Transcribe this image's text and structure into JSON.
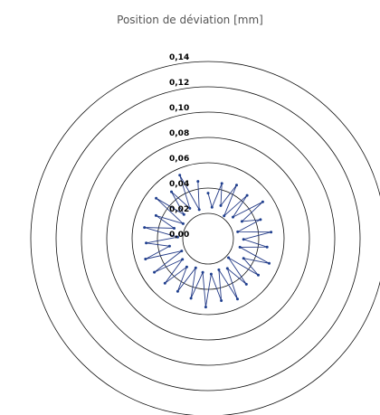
{
  "chart_data": {
    "type": "scatter",
    "subtype": "polar-deviation",
    "title": "Position de déviation [mm]",
    "units": "mm",
    "r_max": 0.14,
    "grid": true,
    "ring_labels": [
      "0,14",
      "0,12",
      "0,10",
      "0,08",
      "0,06",
      "0,04",
      "0,02",
      "0,00"
    ],
    "ring_values": [
      0.14,
      0.12,
      0.1,
      0.08,
      0.06,
      0.04,
      0.02,
      0.0
    ],
    "series": [
      {
        "marker_color": "#1f3f8f",
        "line_color": "#233a86",
        "connected": true,
        "points_angle_deg_radius": [
          [
            90,
            0.036
          ],
          [
            83,
            0.025
          ],
          [
            76,
            0.045
          ],
          [
            69,
            0.028
          ],
          [
            62,
            0.048
          ],
          [
            55,
            0.022
          ],
          [
            48,
            0.046
          ],
          [
            41,
            0.026
          ],
          [
            34,
            0.052
          ],
          [
            27,
            0.03
          ],
          [
            20,
            0.044
          ],
          [
            13,
            0.024
          ],
          [
            6,
            0.05
          ],
          [
            -1,
            0.028
          ],
          [
            -8,
            0.047
          ],
          [
            -15,
            0.026
          ],
          [
            -22,
            0.052
          ],
          [
            -29,
            0.032
          ],
          [
            -36,
            0.049
          ],
          [
            -43,
            0.022
          ],
          [
            -50,
            0.047
          ],
          [
            -57,
            0.028
          ],
          [
            -64,
            0.053
          ],
          [
            -71,
            0.026
          ],
          [
            -78,
            0.05
          ],
          [
            -85,
            0.028
          ],
          [
            -92,
            0.054
          ],
          [
            -99,
            0.027
          ],
          [
            -106,
            0.049
          ],
          [
            -113,
            0.025
          ],
          [
            -120,
            0.048
          ],
          [
            -127,
            0.028
          ],
          [
            -134,
            0.049
          ],
          [
            -141,
            0.026
          ],
          [
            -148,
            0.05
          ],
          [
            -155,
            0.023
          ],
          [
            -162,
            0.052
          ],
          [
            -169,
            0.031
          ],
          [
            -176,
            0.049
          ],
          [
            177,
            0.024
          ],
          [
            170,
            0.051
          ],
          [
            163,
            0.028
          ],
          [
            156,
            0.045
          ],
          [
            149,
            0.023
          ],
          [
            142,
            0.052
          ],
          [
            135,
            0.027
          ],
          [
            128,
            0.047
          ],
          [
            121,
            0.028
          ],
          [
            114,
            0.055
          ],
          [
            107,
            0.024
          ],
          [
            100,
            0.046
          ]
        ]
      }
    ]
  }
}
